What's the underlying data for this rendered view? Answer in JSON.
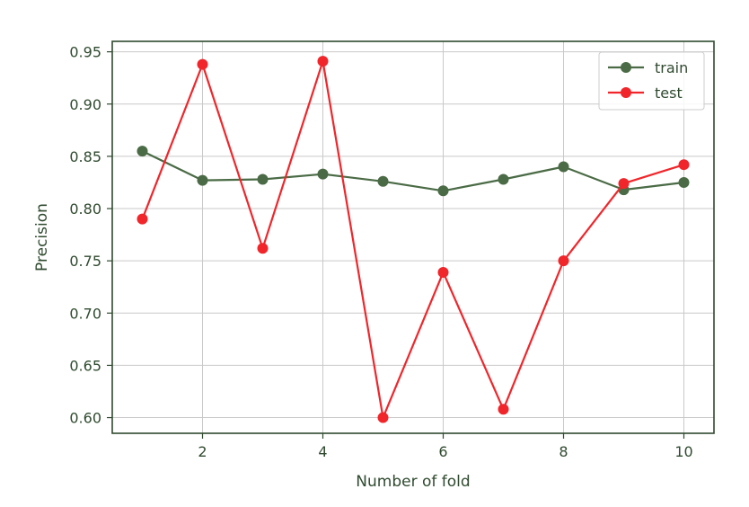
{
  "chart_data": {
    "type": "line",
    "title": "",
    "xlabel": "Number of fold",
    "ylabel": "Precision",
    "x": [
      1,
      2,
      3,
      4,
      5,
      6,
      7,
      8,
      9,
      10
    ],
    "xlim": [
      0.5,
      10.5
    ],
    "ylim": [
      0.585,
      0.96
    ],
    "xticks": [
      2,
      4,
      6,
      8,
      10
    ],
    "yticks": [
      0.6,
      0.65,
      0.7,
      0.75,
      0.8,
      0.85,
      0.9,
      0.95
    ],
    "xtick_labels": [
      "2",
      "4",
      "6",
      "8",
      "10"
    ],
    "ytick_labels": [
      "0.60",
      "0.65",
      "0.70",
      "0.75",
      "0.80",
      "0.85",
      "0.90",
      "0.95"
    ],
    "grid": true,
    "legend_position": "top-right",
    "series": [
      {
        "name": "train",
        "color": "#4a6b45",
        "values": [
          0.855,
          0.827,
          0.828,
          0.833,
          0.826,
          0.817,
          0.828,
          0.84,
          0.818,
          0.825
        ]
      },
      {
        "name": "test",
        "color": "#f0262b",
        "values": [
          0.79,
          0.938,
          0.762,
          0.941,
          0.6,
          0.739,
          0.608,
          0.75,
          0.824,
          0.842
        ]
      }
    ]
  }
}
